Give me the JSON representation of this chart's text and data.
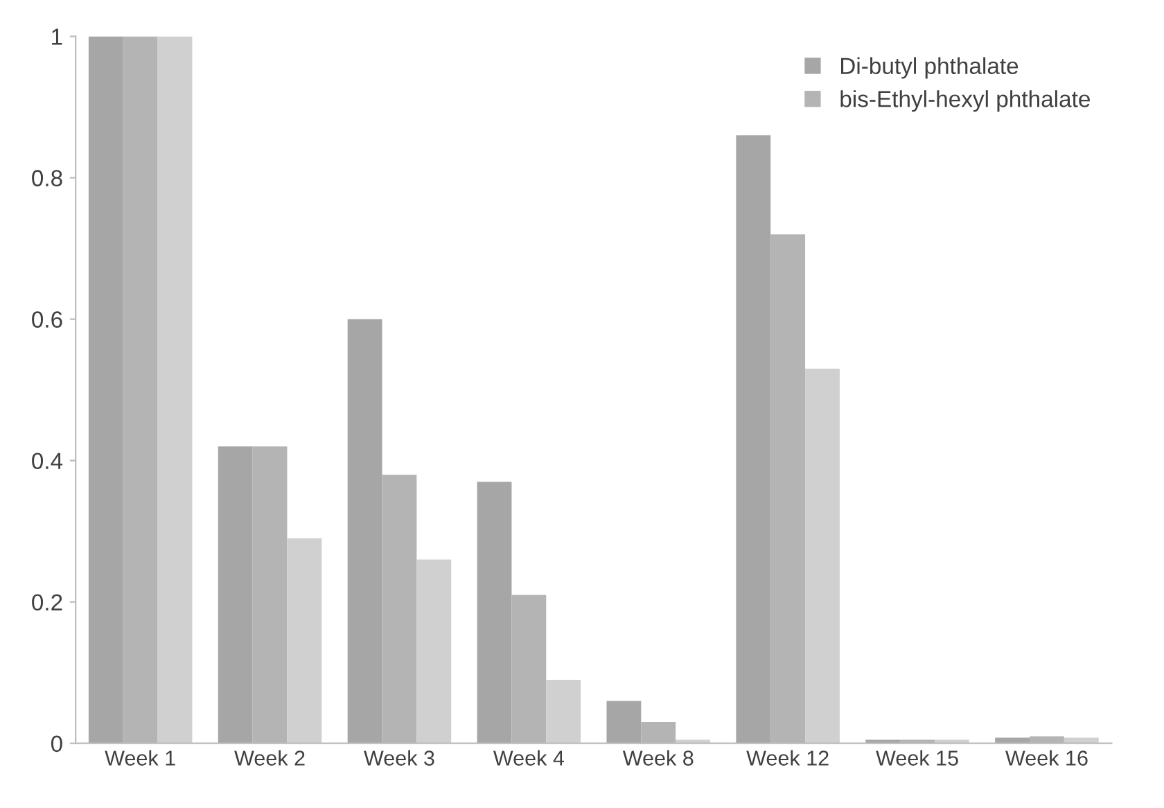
{
  "chart_data": {
    "type": "bar",
    "categories": [
      "Week 1",
      "Week 2",
      "Week 3",
      "Week 4",
      "Week 8",
      "Week 12",
      "Week 15",
      "Week 16"
    ],
    "series": [
      {
        "name": "Di-butyl phthalate",
        "color": "#a6a6a6",
        "values": [
          1,
          0.42,
          0.6,
          0.37,
          0.06,
          0.86,
          0.005,
          0.008
        ]
      },
      {
        "name": "bis-Ethyl-hexyl phthalate",
        "color": "#b4b4b4",
        "values": [
          1,
          0.42,
          0.38,
          0.21,
          0.03,
          0.72,
          0.005,
          0.01
        ]
      },
      {
        "color": "#d0d0d0",
        "values": [
          1,
          0.29,
          0.26,
          0.09,
          0.005,
          0.53,
          0.005,
          0.008
        ]
      }
    ],
    "ylim": [
      0,
      1
    ],
    "yticks": [
      0,
      0.2,
      0.4,
      0.6,
      0.8,
      1
    ],
    "grid": false,
    "legend": "top right"
  }
}
